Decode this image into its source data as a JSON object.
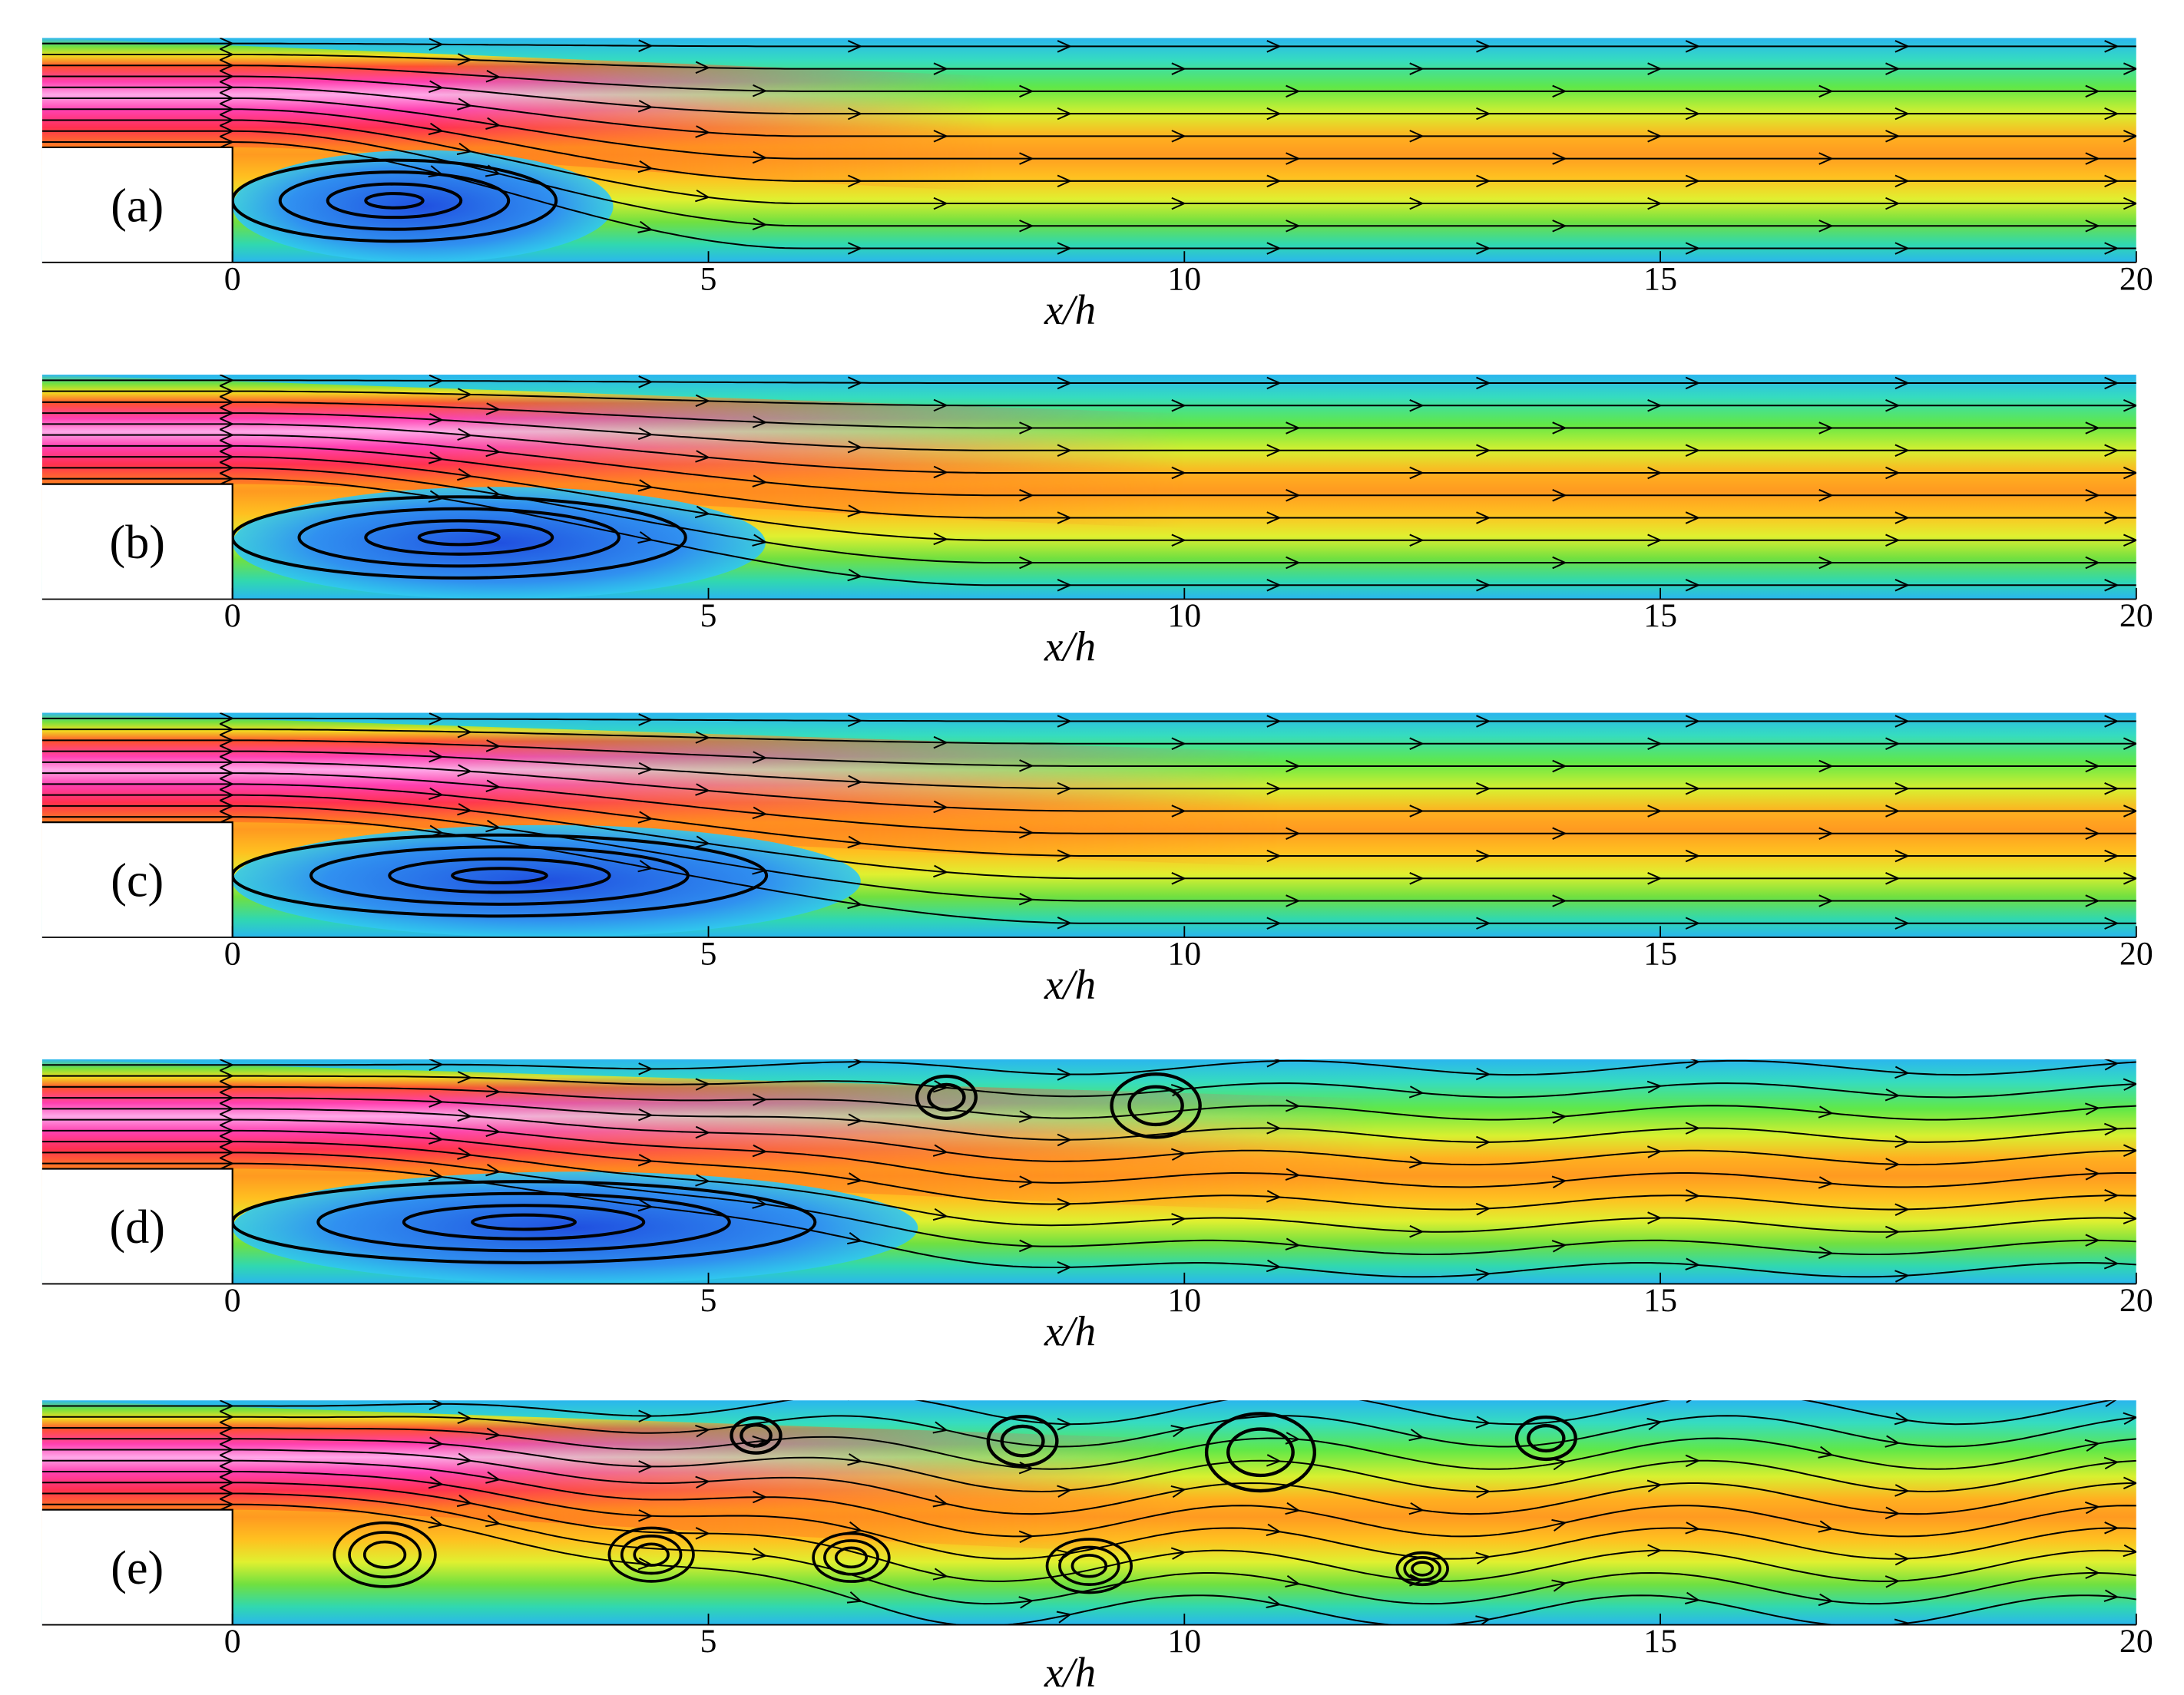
{
  "chart_data": [
    {
      "type": "contour",
      "panel_label": "(a)",
      "xlabel": "x/h",
      "xlim": [
        -2,
        20
      ],
      "xticks": [
        0,
        5,
        10,
        15,
        20
      ]
    },
    {
      "type": "contour",
      "panel_label": "(b)",
      "xlabel": "x/h",
      "xlim": [
        -2,
        20
      ],
      "xticks": [
        0,
        5,
        10,
        15,
        20
      ]
    },
    {
      "type": "contour",
      "panel_label": "(c)",
      "xlabel": "x/h",
      "xlim": [
        -2,
        20
      ],
      "xticks": [
        0,
        5,
        10,
        15,
        20
      ]
    },
    {
      "type": "contour",
      "panel_label": "(d)",
      "xlabel": "x/h",
      "xlim": [
        -2,
        20
      ],
      "xticks": [
        0,
        5,
        10,
        15,
        20
      ]
    },
    {
      "type": "contour",
      "panel_label": "(e)",
      "xlabel": "x/h",
      "xlim": [
        -2,
        20
      ],
      "xticks": [
        0,
        5,
        10,
        15,
        20
      ]
    }
  ]
}
